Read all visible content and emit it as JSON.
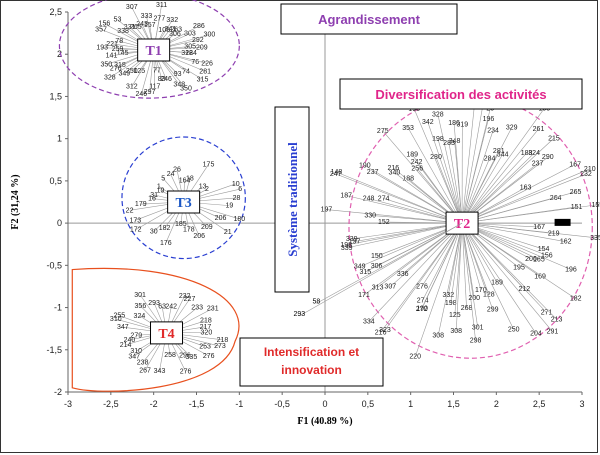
{
  "chart_data": {
    "type": "scatter",
    "xlabel": "F1 (40.89 %)",
    "ylabel": "F2 (31,24 %)",
    "xlim": [
      -3,
      3
    ],
    "ylim": [
      -2,
      2.5
    ],
    "x_ticks": [
      "-3",
      "-2,5",
      "-2",
      "-1,5",
      "-1",
      "-0,5",
      "0",
      "0,5",
      "1",
      "1,5",
      "2",
      "2,5",
      "3"
    ],
    "y_ticks": [
      "2,5",
      "2",
      "1,5",
      "1",
      "0,5",
      "0",
      "-0,5",
      "-1",
      "-1,5",
      "-2"
    ],
    "grid": false,
    "groups": [
      {
        "id": "T1",
        "center": [
          -2.0,
          2.05
        ],
        "color": "#8e3fb0",
        "ellipse_color": "#8e3fb0",
        "labels": [
          "209",
          "305",
          "292",
          "300",
          "303",
          "286",
          "306",
          "263",
          "341",
          "332",
          "105",
          "311",
          "277",
          "157",
          "333",
          "243",
          "307",
          "265",
          "331",
          "53",
          "338",
          "156",
          "357",
          "78",
          "221",
          "193",
          "259",
          "145",
          "141",
          "350",
          "318",
          "276",
          "328",
          "349",
          "250",
          "125",
          "312",
          "246",
          "297",
          "117",
          "77",
          "83",
          "246",
          "348",
          "350",
          "93",
          "74",
          "315",
          "281",
          "76",
          "226",
          "224",
          "318"
        ]
      },
      {
        "id": "T3",
        "center": [
          -1.65,
          0.25
        ],
        "color": "#1a56c4",
        "ellipse_color": "#2a3fd1",
        "labels": [
          "28",
          "6",
          "10",
          "2",
          "13",
          "175",
          "18",
          "164",
          "26",
          "24",
          "5",
          "1",
          "19",
          "31",
          "16",
          "179",
          "22",
          "173",
          "172",
          "30",
          "182",
          "176",
          "185",
          "178",
          "206",
          "209",
          "21",
          "206",
          "180",
          "19"
        ]
      },
      {
        "id": "T2",
        "center": [
          1.6,
          0.0
        ],
        "color": "#e0258a",
        "ellipse_color": "#e060b0",
        "labels": [
          "151",
          "155",
          "264",
          "265",
          "232",
          "210",
          "167",
          "163",
          "290",
          "237",
          "215",
          "324",
          "261",
          "188",
          "158",
          "344",
          "281",
          "329",
          "284",
          "196",
          "234",
          "25",
          "171",
          "235",
          "319",
          "348",
          "186",
          "328",
          "283",
          "198",
          "342",
          "280",
          "190",
          "353",
          "242",
          "189",
          "256",
          "275",
          "188",
          "216",
          "340",
          "237",
          "190",
          "247",
          "148",
          "248",
          "274",
          "187",
          "197",
          "330",
          "152",
          "339",
          "198",
          "197",
          "339",
          "349",
          "150",
          "315",
          "306",
          "171",
          "313",
          "307",
          "336",
          "334",
          "216",
          "323",
          "276",
          "190",
          "274",
          "272",
          "220",
          "308",
          "332",
          "198",
          "125",
          "308",
          "268",
          "298",
          "200",
          "301",
          "170",
          "128",
          "299",
          "250",
          "204",
          "189",
          "291",
          "271",
          "213",
          "212",
          "195",
          "169",
          "182",
          "200",
          "196",
          "165",
          "156",
          "154",
          "162",
          "335",
          "219",
          "167"
        ]
      },
      {
        "id": "T4",
        "center": [
          -1.85,
          -1.3
        ],
        "color": "#e02a2a",
        "ellipse_color": "#e8501e",
        "labels": [
          "320",
          "217",
          "218",
          "231",
          "233",
          "227",
          "232",
          "242",
          "63",
          "293",
          "301",
          "356",
          "324",
          "255",
          "310",
          "347",
          "279",
          "240",
          "214",
          "310",
          "347",
          "238",
          "267",
          "343",
          "258",
          "276",
          "296",
          "335",
          "276",
          "253",
          "273",
          "218"
        ]
      }
    ],
    "annotations": [
      {
        "text": "Agrandissement",
        "color": "#8e3fb0"
      },
      {
        "text": "Diversification des activités",
        "color": "#e0258a"
      },
      {
        "text": "Système traditionnel",
        "color": "#2a3fd1"
      },
      {
        "text": "Intensification et innovation",
        "color": "#e02a2a"
      }
    ],
    "points_outside": [
      "58",
      "293"
    ]
  }
}
